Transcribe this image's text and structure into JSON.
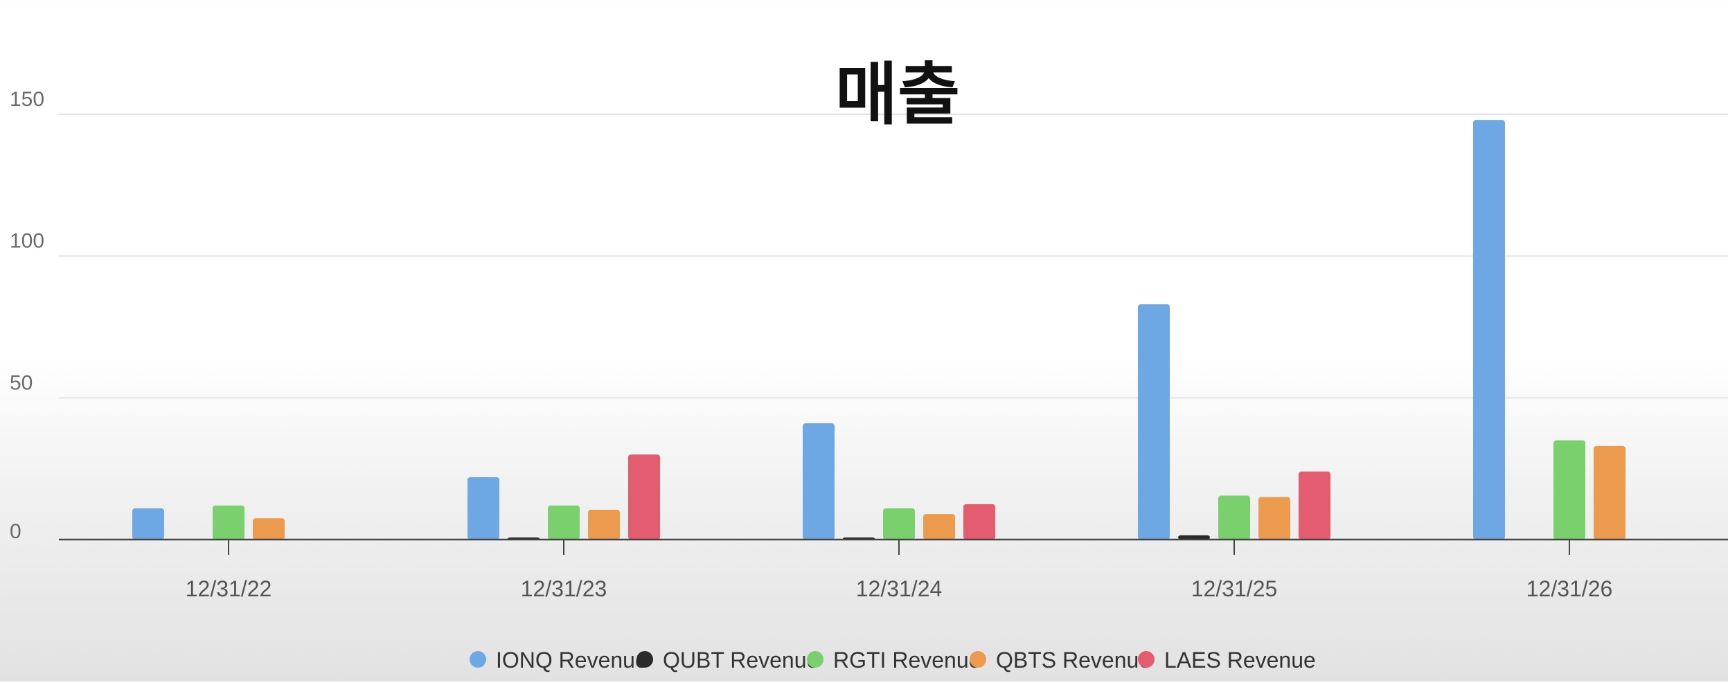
{
  "chart_data": {
    "type": "bar",
    "title": "매출",
    "categories": [
      "12/31/22",
      "12/31/23",
      "12/31/24",
      "12/31/25",
      "12/31/26"
    ],
    "ylim": [
      0,
      170
    ],
    "yticks": [
      0,
      50,
      100,
      150
    ],
    "grid": true,
    "legend_position": "bottom",
    "series": [
      {
        "name": "IONQ Revenue",
        "color": "#6ea8e4",
        "values": [
          11,
          22,
          41,
          83,
          148
        ]
      },
      {
        "name": "QUBT Revenue",
        "color": "#2b2b2b",
        "values": [
          0,
          0.5,
          0.5,
          1.5,
          0
        ]
      },
      {
        "name": "RGTI Revenue",
        "color": "#7bd06e",
        "values": [
          12,
          12,
          11,
          15.5,
          35
        ]
      },
      {
        "name": "QBTS Revenue",
        "color": "#ec9a4e",
        "values": [
          7.5,
          10.5,
          9,
          15,
          33
        ]
      },
      {
        "name": "LAES Revenue",
        "color": "#e45c70",
        "values": [
          0,
          30,
          12.5,
          24,
          0
        ]
      }
    ]
  }
}
